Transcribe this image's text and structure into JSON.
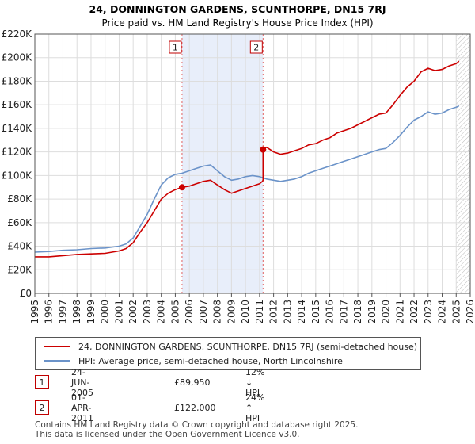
{
  "header": {
    "title": "24, DONNINGTON GARDENS, SCUNTHORPE, DN15 7RJ",
    "subtitle": "Price paid vs. HM Land Registry's House Price Index (HPI)"
  },
  "chart_data": {
    "type": "line",
    "xlim": [
      1995,
      2026
    ],
    "ylim": [
      0,
      220000
    ],
    "y_ticks": [
      0,
      20000,
      40000,
      60000,
      80000,
      100000,
      120000,
      140000,
      160000,
      180000,
      200000,
      220000
    ],
    "y_tick_labels": [
      "£0",
      "£20K",
      "£40K",
      "£60K",
      "£80K",
      "£100K",
      "£120K",
      "£140K",
      "£160K",
      "£180K",
      "£200K",
      "£220K"
    ],
    "x_ticks": [
      1995,
      1996,
      1997,
      1998,
      1999,
      2000,
      2001,
      2002,
      2003,
      2004,
      2005,
      2006,
      2007,
      2008,
      2009,
      2010,
      2011,
      2012,
      2013,
      2014,
      2015,
      2016,
      2017,
      2018,
      2019,
      2020,
      2021,
      2022,
      2023,
      2024,
      2025,
      2026
    ],
    "x_tick_labels": [
      "1995",
      "1996",
      "1997",
      "1998",
      "1999",
      "2000",
      "2001",
      "2002",
      "2003",
      "2004",
      "2005",
      "2006",
      "2007",
      "2008",
      "2009",
      "2010",
      "2011",
      "2012",
      "2013",
      "2014",
      "2015",
      "2016",
      "2017",
      "2018",
      "2019",
      "2020",
      "2021",
      "2022",
      "2023",
      "2024",
      "2025",
      "2026"
    ],
    "grid": true,
    "shaded_region": {
      "from": 2005.48,
      "to": 2011.25,
      "color": "#e8eefa"
    },
    "future_hatch_from": 2025.0,
    "series": [
      {
        "name": "24, DONNINGTON GARDENS, SCUNTHORPE, DN15 7RJ (semi-detached house)",
        "color": "#cc0000",
        "x": [
          1995,
          1996,
          1997,
          1998,
          1999,
          2000,
          2001,
          2001.5,
          2002,
          2002.5,
          2003,
          2003.5,
          2004,
          2004.5,
          2005,
          2005.48,
          2005.48,
          2006,
          2006.5,
          2007,
          2007.5,
          2008,
          2008.5,
          2009,
          2009.5,
          2010,
          2010.5,
          2011,
          2011.2,
          2011.25,
          2011.25,
          2011.5,
          2012,
          2012.5,
          2013,
          2013.5,
          2014,
          2014.5,
          2015,
          2015.5,
          2016,
          2016.5,
          2017,
          2017.5,
          2018,
          2018.5,
          2019,
          2019.5,
          2020,
          2020.5,
          2021,
          2021.5,
          2022,
          2022.5,
          2023,
          2023.5,
          2024,
          2024.5,
          2025,
          2025.2
        ],
        "values": [
          31000,
          31000,
          32000,
          33000,
          33500,
          34000,
          36000,
          38000,
          43000,
          52000,
          60000,
          70000,
          80000,
          85000,
          88000,
          89950,
          89950,
          91000,
          93000,
          95000,
          96000,
          92000,
          88000,
          85000,
          87000,
          89000,
          91000,
          93000,
          95000,
          96000,
          122000,
          124000,
          120000,
          118000,
          119000,
          121000,
          123000,
          126000,
          127000,
          130000,
          132000,
          136000,
          138000,
          140000,
          143000,
          146000,
          149000,
          152000,
          153000,
          160000,
          168000,
          175000,
          180000,
          188000,
          191000,
          189000,
          190000,
          193000,
          195000,
          197000
        ]
      },
      {
        "name": "HPI: Average price, semi-detached house, North Lincolnshire",
        "color": "#6b93c9",
        "x": [
          1995,
          1996,
          1997,
          1998,
          1999,
          2000,
          2001,
          2001.5,
          2002,
          2002.5,
          2003,
          2003.5,
          2004,
          2004.5,
          2005,
          2005.5,
          2006,
          2006.5,
          2007,
          2007.5,
          2008,
          2008.5,
          2009,
          2009.5,
          2010,
          2010.5,
          2011,
          2011.5,
          2012,
          2012.5,
          2013,
          2013.5,
          2014,
          2014.5,
          2015,
          2015.5,
          2016,
          2016.5,
          2017,
          2017.5,
          2018,
          2018.5,
          2019,
          2019.5,
          2020,
          2020.5,
          2021,
          2021.5,
          2022,
          2022.5,
          2023,
          2023.5,
          2024,
          2024.5,
          2025,
          2025.2
        ],
        "values": [
          35000,
          35500,
          36500,
          37000,
          38000,
          38500,
          40000,
          42000,
          47000,
          57000,
          67000,
          80000,
          92000,
          98000,
          101000,
          102000,
          104000,
          106000,
          108000,
          109000,
          104000,
          99000,
          96000,
          97000,
          99000,
          100000,
          99000,
          97000,
          96000,
          95000,
          96000,
          97000,
          99000,
          102000,
          104000,
          106000,
          108000,
          110000,
          112000,
          114000,
          116000,
          118000,
          120000,
          122000,
          123000,
          128000,
          134000,
          141000,
          147000,
          150000,
          154000,
          152000,
          153000,
          156000,
          158000,
          159000
        ]
      }
    ],
    "markers": [
      {
        "label": "1",
        "x": 2005.48,
        "value": 89950
      },
      {
        "label": "2",
        "x": 2011.25,
        "value": 122000
      }
    ]
  },
  "legend": {
    "entries": [
      {
        "label": "24, DONNINGTON GARDENS, SCUNTHORPE, DN15 7RJ (semi-detached house)",
        "color": "#cc0000"
      },
      {
        "label": "HPI: Average price, semi-detached house, North Lincolnshire",
        "color": "#6b93c9"
      }
    ]
  },
  "transactions": [
    {
      "marker": "1",
      "date": "24-JUN-2005",
      "price": "£89,950",
      "hpi": "12% ↓ HPI"
    },
    {
      "marker": "2",
      "date": "01-APR-2011",
      "price": "£122,000",
      "hpi": "24% ↑ HPI"
    }
  ],
  "footer": {
    "line1": "Contains HM Land Registry data © Crown copyright and database right 2025.",
    "line2": "This data is licensed under the Open Government Licence v3.0."
  }
}
